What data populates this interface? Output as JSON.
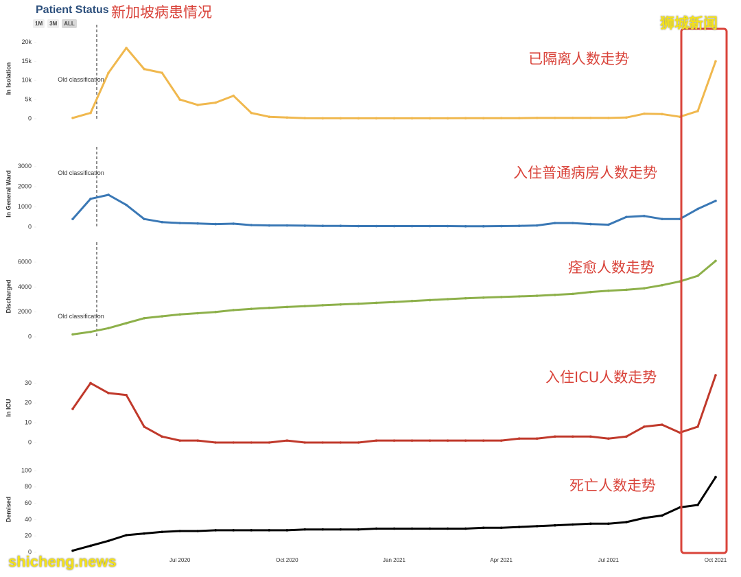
{
  "header": {
    "title": "Patient Status",
    "subtitle": "新加坡病患情况",
    "buttons": [
      "1M",
      "3M",
      "ALL"
    ]
  },
  "watermarks": [
    "狮城新闻",
    "shicheng.news"
  ],
  "chart_data": [
    {
      "type": "line",
      "y_label": "In Isolation",
      "annotation": "已隔离人数走势",
      "marker_label": "Old classification",
      "ylim": [
        0,
        21000
      ],
      "yticks": [
        0,
        {
          "value": 5000,
          "label": "5k"
        },
        {
          "value": 10000,
          "label": "10k"
        },
        {
          "value": 15000,
          "label": "15k"
        },
        {
          "value": 20000,
          "label": "20k"
        }
      ],
      "series": [
        {
          "name": "In Isolation",
          "color": "#f0b84e",
          "values": [
            200,
            1500,
            12000,
            18500,
            13000,
            12000,
            5000,
            3600,
            4200,
            6000,
            1500,
            500,
            300,
            150,
            100,
            100,
            100,
            100,
            100,
            100,
            100,
            100,
            120,
            120,
            150,
            150,
            200,
            200,
            200,
            200,
            200,
            300,
            1300,
            1200,
            500,
            2000,
            15000
          ]
        }
      ]
    },
    {
      "type": "line",
      "y_label": "In General Ward",
      "annotation": "入住普通病房人数走势",
      "marker_label": "Old classification",
      "ylim": [
        0,
        3300
      ],
      "yticks": [
        0,
        1000,
        2000,
        3000
      ],
      "series": [
        {
          "name": "In General Ward",
          "color": "#3a78b5",
          "values": [
            400,
            1400,
            1600,
            1100,
            400,
            250,
            200,
            180,
            150,
            170,
            100,
            80,
            80,
            70,
            60,
            60,
            50,
            50,
            50,
            50,
            50,
            50,
            40,
            40,
            50,
            60,
            80,
            200,
            200,
            150,
            120,
            500,
            550,
            400,
            400,
            900,
            1300
          ]
        }
      ]
    },
    {
      "type": "line",
      "y_label": "Discharged",
      "annotation": "痊愈人数走势",
      "marker_label": "Old classification",
      "ylim": [
        0,
        6500
      ],
      "yticks": [
        0,
        2000,
        4000,
        6000
      ],
      "series": [
        {
          "name": "Discharged",
          "color": "#8db04a",
          "values": [
            200,
            400,
            700,
            1100,
            1500,
            1650,
            1800,
            1900,
            2000,
            2150,
            2250,
            2330,
            2400,
            2470,
            2540,
            2600,
            2660,
            2730,
            2800,
            2880,
            2950,
            3030,
            3100,
            3150,
            3200,
            3250,
            3300,
            3370,
            3450,
            3600,
            3700,
            3780,
            3900,
            4150,
            4450,
            4900,
            6100
          ]
        }
      ]
    },
    {
      "type": "line",
      "y_label": "In ICU",
      "annotation": "入住ICU人数走势",
      "ylim": [
        0,
        35
      ],
      "yticks": [
        0,
        10,
        20,
        30
      ],
      "series": [
        {
          "name": "In ICU",
          "color": "#c0392b",
          "values": [
            17,
            30,
            25,
            24,
            8,
            3,
            1,
            1,
            0,
            0,
            0,
            0,
            1,
            0,
            0,
            0,
            0,
            1,
            1,
            1,
            1,
            1,
            1,
            1,
            1,
            2,
            2,
            3,
            3,
            3,
            2,
            3,
            8,
            9,
            5,
            8,
            34
          ]
        }
      ]
    },
    {
      "type": "line",
      "y_label": "Demised",
      "annotation": "死亡人数走势",
      "ylim": [
        0,
        105
      ],
      "yticks": [
        0,
        20,
        40,
        60,
        80,
        100
      ],
      "categories": [
        null,
        null,
        null,
        null,
        null,
        null,
        "Jul 2020",
        null,
        null,
        null,
        null,
        null,
        "Oct 2020",
        null,
        null,
        null,
        null,
        null,
        "Jan 2021",
        null,
        null,
        null,
        null,
        null,
        "Apr 2021",
        null,
        null,
        null,
        null,
        null,
        "Jul 2021",
        null,
        null,
        null,
        null,
        null,
        "Oct 2021"
      ],
      "series": [
        {
          "name": "Demised",
          "color": "#000000",
          "values": [
            2,
            8,
            14,
            21,
            23,
            25,
            26,
            26,
            27,
            27,
            27,
            27,
            27,
            28,
            28,
            28,
            28,
            29,
            29,
            29,
            29,
            29,
            29,
            30,
            30,
            31,
            32,
            33,
            34,
            35,
            35,
            37,
            42,
            45,
            55,
            58,
            92
          ]
        }
      ]
    }
  ]
}
